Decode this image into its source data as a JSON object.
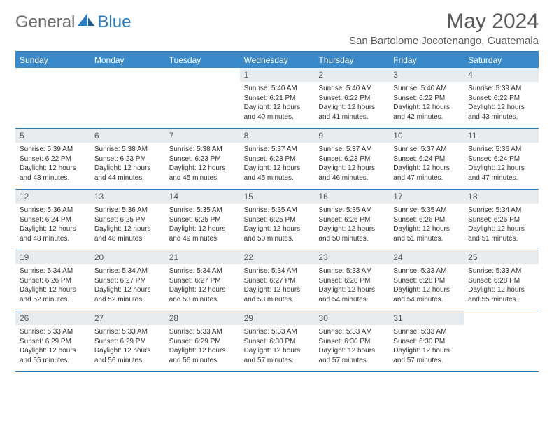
{
  "brand": {
    "general": "General",
    "blue": "Blue"
  },
  "title": {
    "month": "May 2024",
    "location": "San Bartolome Jocotenango, Guatemala"
  },
  "colors": {
    "header_bar": "#3a8ac9",
    "border": "#2b7bbf",
    "daynum_bg": "#e8ecef",
    "text": "#333333",
    "title_text": "#5a5a5a"
  },
  "calendar": {
    "days_of_week": [
      "Sunday",
      "Monday",
      "Tuesday",
      "Wednesday",
      "Thursday",
      "Friday",
      "Saturday"
    ],
    "weeks": [
      [
        null,
        null,
        null,
        {
          "n": "1",
          "sr": "Sunrise: 5:40 AM",
          "ss": "Sunset: 6:21 PM",
          "d1": "Daylight: 12 hours",
          "d2": "and 40 minutes."
        },
        {
          "n": "2",
          "sr": "Sunrise: 5:40 AM",
          "ss": "Sunset: 6:22 PM",
          "d1": "Daylight: 12 hours",
          "d2": "and 41 minutes."
        },
        {
          "n": "3",
          "sr": "Sunrise: 5:40 AM",
          "ss": "Sunset: 6:22 PM",
          "d1": "Daylight: 12 hours",
          "d2": "and 42 minutes."
        },
        {
          "n": "4",
          "sr": "Sunrise: 5:39 AM",
          "ss": "Sunset: 6:22 PM",
          "d1": "Daylight: 12 hours",
          "d2": "and 43 minutes."
        }
      ],
      [
        {
          "n": "5",
          "sr": "Sunrise: 5:39 AM",
          "ss": "Sunset: 6:22 PM",
          "d1": "Daylight: 12 hours",
          "d2": "and 43 minutes."
        },
        {
          "n": "6",
          "sr": "Sunrise: 5:38 AM",
          "ss": "Sunset: 6:23 PM",
          "d1": "Daylight: 12 hours",
          "d2": "and 44 minutes."
        },
        {
          "n": "7",
          "sr": "Sunrise: 5:38 AM",
          "ss": "Sunset: 6:23 PM",
          "d1": "Daylight: 12 hours",
          "d2": "and 45 minutes."
        },
        {
          "n": "8",
          "sr": "Sunrise: 5:37 AM",
          "ss": "Sunset: 6:23 PM",
          "d1": "Daylight: 12 hours",
          "d2": "and 45 minutes."
        },
        {
          "n": "9",
          "sr": "Sunrise: 5:37 AM",
          "ss": "Sunset: 6:23 PM",
          "d1": "Daylight: 12 hours",
          "d2": "and 46 minutes."
        },
        {
          "n": "10",
          "sr": "Sunrise: 5:37 AM",
          "ss": "Sunset: 6:24 PM",
          "d1": "Daylight: 12 hours",
          "d2": "and 47 minutes."
        },
        {
          "n": "11",
          "sr": "Sunrise: 5:36 AM",
          "ss": "Sunset: 6:24 PM",
          "d1": "Daylight: 12 hours",
          "d2": "and 47 minutes."
        }
      ],
      [
        {
          "n": "12",
          "sr": "Sunrise: 5:36 AM",
          "ss": "Sunset: 6:24 PM",
          "d1": "Daylight: 12 hours",
          "d2": "and 48 minutes."
        },
        {
          "n": "13",
          "sr": "Sunrise: 5:36 AM",
          "ss": "Sunset: 6:25 PM",
          "d1": "Daylight: 12 hours",
          "d2": "and 48 minutes."
        },
        {
          "n": "14",
          "sr": "Sunrise: 5:35 AM",
          "ss": "Sunset: 6:25 PM",
          "d1": "Daylight: 12 hours",
          "d2": "and 49 minutes."
        },
        {
          "n": "15",
          "sr": "Sunrise: 5:35 AM",
          "ss": "Sunset: 6:25 PM",
          "d1": "Daylight: 12 hours",
          "d2": "and 50 minutes."
        },
        {
          "n": "16",
          "sr": "Sunrise: 5:35 AM",
          "ss": "Sunset: 6:26 PM",
          "d1": "Daylight: 12 hours",
          "d2": "and 50 minutes."
        },
        {
          "n": "17",
          "sr": "Sunrise: 5:35 AM",
          "ss": "Sunset: 6:26 PM",
          "d1": "Daylight: 12 hours",
          "d2": "and 51 minutes."
        },
        {
          "n": "18",
          "sr": "Sunrise: 5:34 AM",
          "ss": "Sunset: 6:26 PM",
          "d1": "Daylight: 12 hours",
          "d2": "and 51 minutes."
        }
      ],
      [
        {
          "n": "19",
          "sr": "Sunrise: 5:34 AM",
          "ss": "Sunset: 6:26 PM",
          "d1": "Daylight: 12 hours",
          "d2": "and 52 minutes."
        },
        {
          "n": "20",
          "sr": "Sunrise: 5:34 AM",
          "ss": "Sunset: 6:27 PM",
          "d1": "Daylight: 12 hours",
          "d2": "and 52 minutes."
        },
        {
          "n": "21",
          "sr": "Sunrise: 5:34 AM",
          "ss": "Sunset: 6:27 PM",
          "d1": "Daylight: 12 hours",
          "d2": "and 53 minutes."
        },
        {
          "n": "22",
          "sr": "Sunrise: 5:34 AM",
          "ss": "Sunset: 6:27 PM",
          "d1": "Daylight: 12 hours",
          "d2": "and 53 minutes."
        },
        {
          "n": "23",
          "sr": "Sunrise: 5:33 AM",
          "ss": "Sunset: 6:28 PM",
          "d1": "Daylight: 12 hours",
          "d2": "and 54 minutes."
        },
        {
          "n": "24",
          "sr": "Sunrise: 5:33 AM",
          "ss": "Sunset: 6:28 PM",
          "d1": "Daylight: 12 hours",
          "d2": "and 54 minutes."
        },
        {
          "n": "25",
          "sr": "Sunrise: 5:33 AM",
          "ss": "Sunset: 6:28 PM",
          "d1": "Daylight: 12 hours",
          "d2": "and 55 minutes."
        }
      ],
      [
        {
          "n": "26",
          "sr": "Sunrise: 5:33 AM",
          "ss": "Sunset: 6:29 PM",
          "d1": "Daylight: 12 hours",
          "d2": "and 55 minutes."
        },
        {
          "n": "27",
          "sr": "Sunrise: 5:33 AM",
          "ss": "Sunset: 6:29 PM",
          "d1": "Daylight: 12 hours",
          "d2": "and 56 minutes."
        },
        {
          "n": "28",
          "sr": "Sunrise: 5:33 AM",
          "ss": "Sunset: 6:29 PM",
          "d1": "Daylight: 12 hours",
          "d2": "and 56 minutes."
        },
        {
          "n": "29",
          "sr": "Sunrise: 5:33 AM",
          "ss": "Sunset: 6:30 PM",
          "d1": "Daylight: 12 hours",
          "d2": "and 57 minutes."
        },
        {
          "n": "30",
          "sr": "Sunrise: 5:33 AM",
          "ss": "Sunset: 6:30 PM",
          "d1": "Daylight: 12 hours",
          "d2": "and 57 minutes."
        },
        {
          "n": "31",
          "sr": "Sunrise: 5:33 AM",
          "ss": "Sunset: 6:30 PM",
          "d1": "Daylight: 12 hours",
          "d2": "and 57 minutes."
        },
        null
      ]
    ]
  }
}
